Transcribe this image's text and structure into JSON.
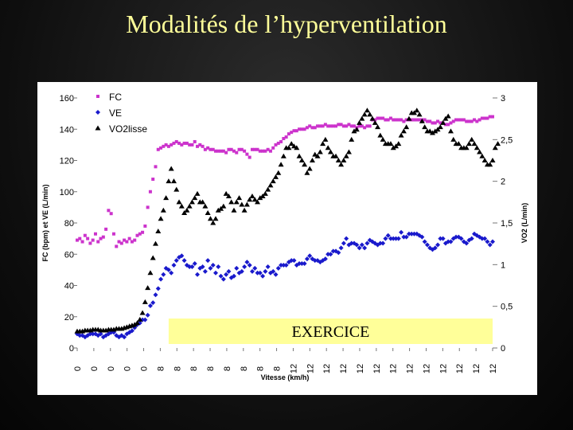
{
  "slide": {
    "title": "Modalités de l’hyperventilation"
  },
  "chart_data": {
    "type": "scatter",
    "title": "Modalités de l’hyperventilation",
    "ylabel_left": "FC (bpm) et VE (L/min)",
    "ylabel_right": "VO2 (L/min)",
    "xlabel": "Vitesse (km/h)",
    "ylim_left": [
      0,
      160
    ],
    "ylim_right": [
      0,
      3
    ],
    "yticks_left": [
      "0",
      "20",
      "40",
      "60",
      "80",
      "100",
      "120",
      "140",
      "160"
    ],
    "yticks_right": [
      "0",
      "0,5",
      "1",
      "1,5",
      "2",
      "2,5",
      "3"
    ],
    "xticks": [
      "0",
      "0",
      "0",
      "0",
      "0",
      "8",
      "8",
      "8",
      "8",
      "8",
      "8",
      "8",
      "8",
      "12",
      "12",
      "12",
      "12",
      "12",
      "12",
      "12",
      "12",
      "12",
      "12",
      "12",
      "12",
      "12"
    ],
    "x_sample_count": 160,
    "legend": [
      {
        "name": "FC",
        "marker": "square",
        "color": "#cc33cc"
      },
      {
        "name": "VE",
        "marker": "diamond",
        "color": "#1a1acc"
      },
      {
        "name": "VO2lisse",
        "marker": "triangle",
        "color": "#000000"
      }
    ],
    "series": [
      {
        "name": "FC",
        "axis": "left",
        "color": "#cc33cc",
        "values": [
          69,
          70,
          68,
          72,
          70,
          67,
          69,
          73,
          68,
          70,
          71,
          76,
          88,
          86,
          73,
          65,
          68,
          67,
          69,
          68,
          70,
          68,
          69,
          72,
          73,
          74,
          78,
          90,
          100,
          108,
          116,
          127,
          128,
          129,
          130,
          129,
          130,
          131,
          132,
          131,
          130,
          131,
          131,
          130,
          130,
          132,
          129,
          130,
          129,
          127,
          128,
          127,
          127,
          126,
          126,
          126,
          126,
          125,
          127,
          127,
          126,
          125,
          127,
          127,
          126,
          124,
          122,
          127,
          127,
          127,
          126,
          126,
          126,
          127,
          126,
          128,
          130,
          131,
          132,
          134,
          135,
          137,
          138,
          139,
          139,
          140,
          140,
          140,
          141,
          142,
          141,
          141,
          142,
          142,
          142,
          143,
          142,
          142,
          142,
          142,
          143,
          143,
          142,
          142,
          143,
          142,
          142,
          141,
          142,
          142,
          141,
          142,
          142,
          146,
          146,
          147,
          147,
          147,
          146,
          146,
          147,
          146,
          146,
          146,
          146,
          145,
          146,
          146,
          146,
          146,
          146,
          146,
          146,
          146,
          145,
          145,
          144,
          144,
          145,
          144,
          144,
          143,
          143,
          144,
          145,
          146,
          146,
          146,
          146,
          145,
          145,
          145,
          146,
          145,
          146,
          147,
          147,
          147,
          148,
          148
        ]
      },
      {
        "name": "VE",
        "axis": "left",
        "color": "#1a1acc",
        "values": [
          9,
          8,
          8,
          7,
          8,
          9,
          9,
          9,
          8,
          9,
          7,
          8,
          9,
          10,
          10,
          8,
          7,
          8,
          7,
          9,
          10,
          11,
          13,
          15,
          16,
          18,
          18,
          21,
          27,
          29,
          34,
          38,
          44,
          47,
          51,
          50,
          48,
          53,
          56,
          58,
          59,
          56,
          53,
          52,
          52,
          54,
          47,
          51,
          52,
          49,
          56,
          51,
          53,
          48,
          52,
          46,
          44,
          47,
          49,
          45,
          46,
          51,
          48,
          49,
          52,
          55,
          53,
          49,
          51,
          48,
          48,
          46,
          49,
          52,
          48,
          49,
          47,
          51,
          53,
          53,
          53,
          55,
          56,
          56,
          53,
          54,
          54,
          54,
          57,
          59,
          57,
          56,
          56,
          55,
          56,
          57,
          60,
          60,
          62,
          62,
          61,
          64,
          67,
          70,
          66,
          67,
          67,
          66,
          64,
          66,
          64,
          67,
          69,
          68,
          67,
          66,
          67,
          67,
          70,
          72,
          70,
          70,
          70,
          70,
          74,
          71,
          71,
          73,
          73,
          73,
          73,
          72,
          71,
          68,
          66,
          64,
          63,
          64,
          66,
          70,
          70,
          67,
          68,
          68,
          70,
          71,
          71,
          70,
          68,
          67,
          69,
          70,
          73,
          72,
          71,
          70,
          70,
          68,
          66,
          68
        ]
      },
      {
        "name": "VO2lisse",
        "axis": "right",
        "color": "#000000",
        "values": [
          0.2,
          0.2,
          0.2,
          0.21,
          0.21,
          0.21,
          0.22,
          0.22,
          0.22,
          0.21,
          0.21,
          0.21,
          0.22,
          0.22,
          0.22,
          0.23,
          0.23,
          0.23,
          0.24,
          0.25,
          0.26,
          0.27,
          0.28,
          0.3,
          0.34,
          0.42,
          0.55,
          0.72,
          0.9,
          1.08,
          1.25,
          1.4,
          1.55,
          1.65,
          1.8,
          2.0,
          2.15,
          2.0,
          1.9,
          1.75,
          1.7,
          1.62,
          1.65,
          1.7,
          1.75,
          1.8,
          1.85,
          1.75,
          1.75,
          1.7,
          1.62,
          1.55,
          1.5,
          1.55,
          1.65,
          1.67,
          1.7,
          1.85,
          1.82,
          1.75,
          1.65,
          1.75,
          1.8,
          1.72,
          1.65,
          1.72,
          1.78,
          1.82,
          1.78,
          1.75,
          1.8,
          1.82,
          1.85,
          1.9,
          1.95,
          2.0,
          2.05,
          2.1,
          2.2,
          2.3,
          2.4,
          2.4,
          2.45,
          2.42,
          2.4,
          2.3,
          2.25,
          2.2,
          2.1,
          2.15,
          2.25,
          2.32,
          2.3,
          2.35,
          2.45,
          2.5,
          2.4,
          2.35,
          2.3,
          2.3,
          2.25,
          2.2,
          2.25,
          2.3,
          2.35,
          2.5,
          2.6,
          2.62,
          2.7,
          2.75,
          2.8,
          2.85,
          2.8,
          2.75,
          2.7,
          2.65,
          2.55,
          2.5,
          2.45,
          2.45,
          2.45,
          2.4,
          2.42,
          2.45,
          2.55,
          2.6,
          2.65,
          2.75,
          2.82,
          2.82,
          2.85,
          2.8,
          2.72,
          2.65,
          2.6,
          2.6,
          2.58,
          2.6,
          2.62,
          2.65,
          2.7,
          2.75,
          2.78,
          2.6,
          2.5,
          2.45,
          2.45,
          2.4,
          2.4,
          2.4,
          2.45,
          2.5,
          2.45,
          2.4,
          2.35,
          2.3,
          2.25,
          2.2,
          2.2,
          2.25,
          2.4,
          2.45
        ]
      }
    ],
    "annotations": [
      {
        "text": "EXERCICE",
        "from_index": 35,
        "to_index": 159
      }
    ]
  }
}
